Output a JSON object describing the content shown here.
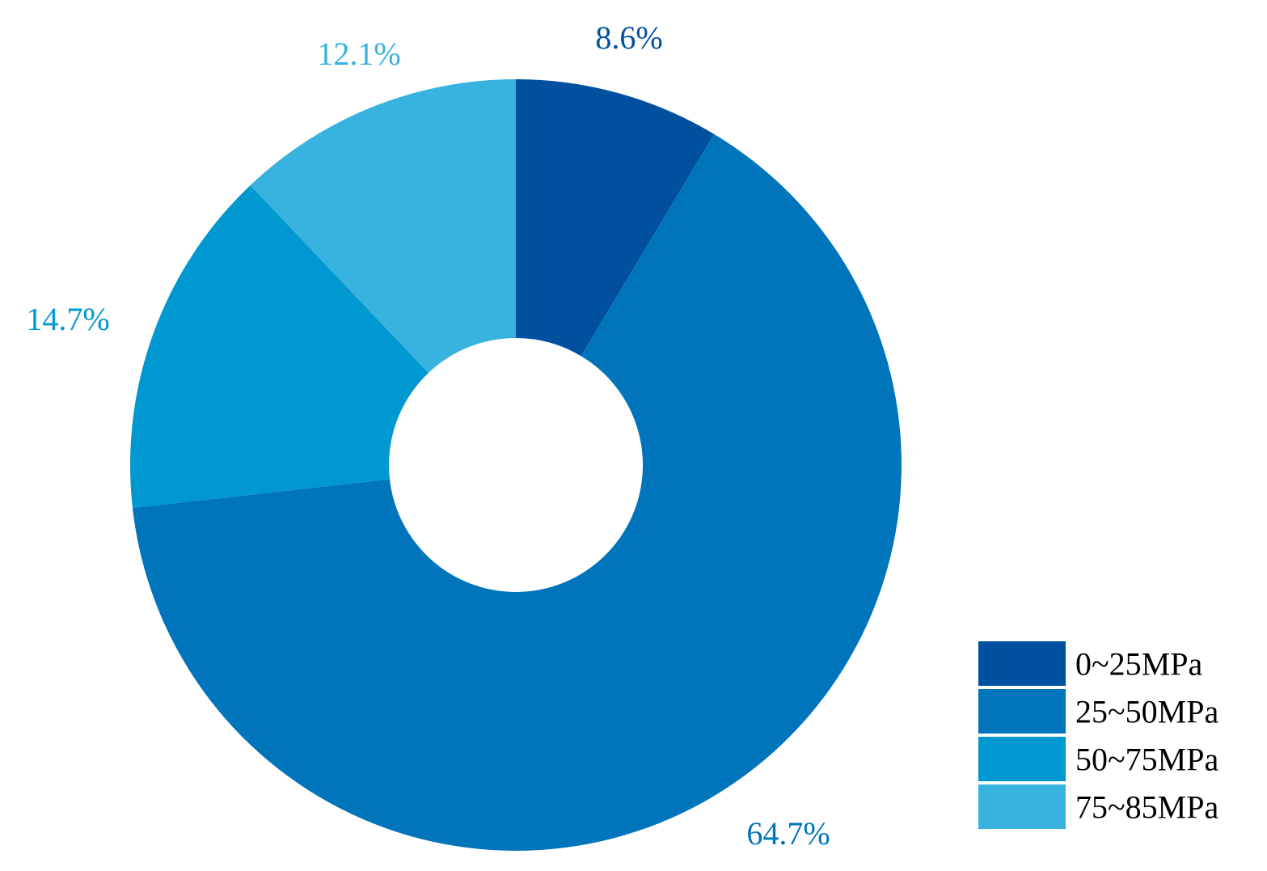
{
  "chart_data": {
    "type": "pie",
    "variant": "donut",
    "title": "",
    "categories": [
      "0~25MPa",
      "25~50MPa",
      "50~75MPa",
      "75~85MPa"
    ],
    "values": [
      8.6,
      64.7,
      14.7,
      12.1
    ],
    "labels": [
      "8.6%",
      "64.7%",
      "14.7%",
      "12.1%"
    ],
    "colors": [
      "#0050A0",
      "#0075BC",
      "#0098D0",
      "#38B3DF"
    ],
    "start_angle_deg": 0,
    "direction": "clockwise",
    "legend": {
      "placement": "bottom-right",
      "entries": [
        "0~25MPa",
        "25~50MPa",
        "50~75MPa",
        "75~85MPa"
      ]
    }
  }
}
